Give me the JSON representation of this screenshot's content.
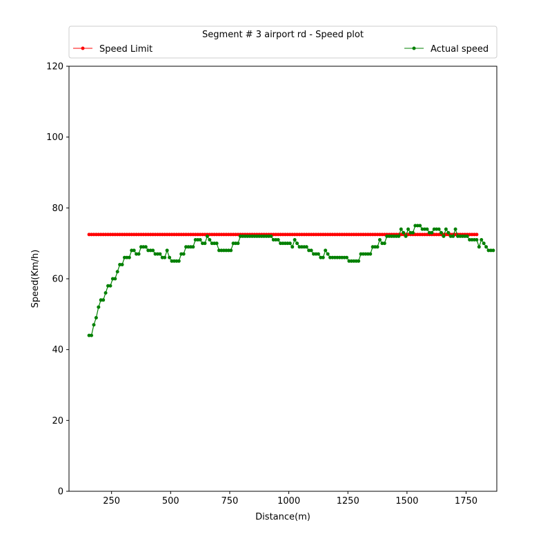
{
  "chart_data": {
    "type": "line",
    "title": "Segment # 3 airport rd - Speed plot",
    "xlabel": "Distance(m)",
    "ylabel": "Speed(Km/h)",
    "xlim": [
      70,
      1880
    ],
    "ylim": [
      0,
      120
    ],
    "xticks": [
      250,
      500,
      750,
      1000,
      1250,
      1500,
      1750
    ],
    "yticks": [
      0,
      20,
      40,
      60,
      80,
      100,
      120
    ],
    "grid": false,
    "legend_position": "top",
    "series": [
      {
        "name": "Speed Limit",
        "color": "#ff0000",
        "marker": "circle",
        "x_start": 155,
        "x_end": 1795,
        "x_step": 10,
        "value": 72.5
      },
      {
        "name": "Actual speed",
        "color": "#008000",
        "marker": "circle",
        "x_start": 155,
        "x_step": 10,
        "values": [
          44,
          44,
          47,
          49,
          52,
          54,
          54,
          56,
          58,
          58,
          60,
          60,
          62,
          64,
          64,
          66,
          66,
          66,
          68,
          68,
          67,
          67,
          69,
          69,
          69,
          68,
          68,
          68,
          67,
          67,
          67,
          66,
          66,
          68,
          66,
          65,
          65,
          65,
          65,
          67,
          67,
          69,
          69,
          69,
          69,
          71,
          71,
          71,
          70,
          70,
          72,
          71,
          70,
          70,
          70,
          68,
          68,
          68,
          68,
          68,
          68,
          70,
          70,
          70,
          72,
          72,
          72,
          72,
          72,
          72,
          72,
          72,
          72,
          72,
          72,
          72,
          72,
          72,
          71,
          71,
          71,
          70,
          70,
          70,
          70,
          70,
          69,
          71,
          70,
          69,
          69,
          69,
          69,
          68,
          68,
          67,
          67,
          67,
          66,
          66,
          68,
          67,
          66,
          66,
          66,
          66,
          66,
          66,
          66,
          66,
          65,
          65,
          65,
          65,
          65,
          67,
          67,
          67,
          67,
          67,
          69,
          69,
          69,
          71,
          70,
          70,
          72,
          72,
          72,
          72,
          72,
          72,
          74,
          73,
          72,
          74,
          73,
          73,
          75,
          75,
          75,
          74,
          74,
          74,
          73,
          73,
          74,
          74,
          74,
          73,
          72,
          74,
          73,
          72,
          72,
          74,
          72,
          72,
          72,
          72,
          72,
          71,
          71,
          71,
          71,
          69,
          71,
          70,
          69,
          68,
          68,
          68
        ]
      }
    ]
  }
}
